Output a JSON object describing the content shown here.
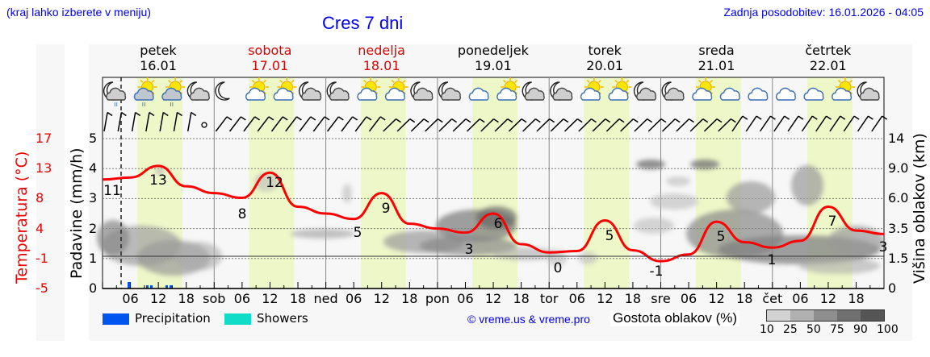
{
  "header": {
    "location_hint": "(kraj lahko izberete v meniju)",
    "title": "Cres 7 dni",
    "last_update": "Zadnja posodobitev: 16.01.2026 - 04:05"
  },
  "days": [
    {
      "name": "petek",
      "date": "16.01",
      "weekend": false
    },
    {
      "name": "sobota",
      "date": "17.01",
      "weekend": true
    },
    {
      "name": "nedelja",
      "date": "18.01",
      "weekend": true
    },
    {
      "name": "ponedeljek",
      "date": "19.01",
      "weekend": false
    },
    {
      "name": "torek",
      "date": "20.01",
      "weekend": false
    },
    {
      "name": "sreda",
      "date": "21.01",
      "weekend": false
    },
    {
      "name": "četrtek",
      "date": "22.01",
      "weekend": false
    }
  ],
  "weather_icons": [
    "moon-cloud-rain-icon",
    "sun-cloud-rain-icon",
    "sun-cloud-rain-icon",
    "moon-cloud-icon",
    "moon-icon",
    "sun-cloud-icon",
    "sun-cloud-icon",
    "moon-cloud-icon",
    "moon-cloud-icon",
    "sun-cloud-icon",
    "sun-cloud-icon",
    "moon-cloud-icon",
    "moon-cloud-icon",
    "cloud-icon",
    "sun-cloud-icon",
    "moon-cloud-icon",
    "moon-cloud-icon",
    "sun-cloud-icon",
    "sun-cloud-icon",
    "moon-cloud-icon",
    "moon-cloud-icon",
    "sun-cloud-icon",
    "cloud-icon",
    "cloud-icon",
    "cloud-icon",
    "cloud-icon",
    "sun-cloud-icon",
    "moon-cloud-icon"
  ],
  "axes": {
    "temperature_title": "Temperatura (°C)",
    "temperature_ticks": [
      "17",
      "13",
      "8",
      "4",
      "-1",
      "-5"
    ],
    "precip_title": "Padavine (mm/h)",
    "precip_ticks": [
      "5",
      "4",
      "3",
      "2",
      "1",
      "0"
    ],
    "cloud_title": "Višina oblakov (km)",
    "cloud_ticks": [
      "14",
      "9.0",
      "6.0",
      "3.5",
      "1.5",
      "0"
    ],
    "x_ticks": [
      "06",
      "12",
      "18",
      "sob",
      "06",
      "12",
      "18",
      "ned",
      "06",
      "12",
      "18",
      "pon",
      "06",
      "12",
      "18",
      "tor",
      "06",
      "12",
      "18",
      "sre",
      "06",
      "12",
      "18",
      "čet",
      "06",
      "12",
      "18"
    ]
  },
  "legend": {
    "precipitation_label": "Precipitation",
    "precipitation_color": "#0055ee",
    "showers_label": "Showers",
    "showers_color": "#11dcc8",
    "copyright": "© vreme.us & vreme.pro",
    "cloud_density_label": "Gostota oblakov (%)",
    "cloud_density_scale": [
      "10",
      "25",
      "50",
      "75",
      "90",
      "100"
    ],
    "cloud_density_colors": [
      "#d2d2d2",
      "#b0b0b0",
      "#8e8e8e",
      "#707070",
      "#555555"
    ]
  },
  "colors": {
    "temperature_line": "#ff0000",
    "daylight_band": "#eef7c8",
    "title_blue": "#0000ee",
    "weekend_red": "#dd0000"
  },
  "chart_data": {
    "type": "line",
    "title": "Cres 7 dni",
    "xlabel": "",
    "ylabel": "Temperatura (°C)",
    "ylim": [
      -5,
      17
    ],
    "x": [
      "16.01 00",
      "16.01 06",
      "16.01 12",
      "16.01 18",
      "17.01 00",
      "17.01 06",
      "17.01 12",
      "17.01 18",
      "18.01 00",
      "18.01 06",
      "18.01 12",
      "18.01 18",
      "19.01 00",
      "19.01 06",
      "19.01 12",
      "19.01 18",
      "20.01 00",
      "20.01 06",
      "20.01 12",
      "20.01 18",
      "21.01 00",
      "21.01 06",
      "21.01 12",
      "21.01 18",
      "22.01 00",
      "22.01 06",
      "22.01 12",
      "22.01 18",
      "23.01 00"
    ],
    "series": [
      {
        "name": "Temperatura (°C)",
        "values": [
          11,
          11.3,
          13,
          10,
          9,
          8.3,
          12,
          7,
          6,
          5.2,
          9,
          4.5,
          3.8,
          3.2,
          6,
          1.5,
          0.3,
          0.5,
          5,
          0.6,
          -1,
          0,
          4.8,
          1.8,
          1,
          2,
          7,
          3.5,
          3
        ]
      },
      {
        "name": "Precipitation (mm/h)",
        "values": [
          0,
          0.25,
          0.15,
          0,
          0,
          0,
          0,
          0,
          0,
          0,
          0,
          0,
          0,
          0,
          0,
          0,
          0,
          0,
          0,
          0,
          0,
          0,
          0,
          0,
          0,
          0,
          0,
          0,
          0
        ]
      }
    ],
    "annotations": {
      "temperature_labels": [
        {
          "day": "16.01",
          "time": "00",
          "value": 11
        },
        {
          "day": "16.01",
          "time": "12",
          "value": 13
        },
        {
          "day": "17.01",
          "time": "05",
          "value": 8
        },
        {
          "day": "17.01",
          "time": "12",
          "value": 12
        },
        {
          "day": "18.01",
          "time": "05",
          "value": 5
        },
        {
          "day": "18.01",
          "time": "12",
          "value": 9
        },
        {
          "day": "19.01",
          "time": "06",
          "value": 3
        },
        {
          "day": "19.01",
          "time": "13",
          "value": 6
        },
        {
          "day": "20.01",
          "time": "02",
          "value": 0
        },
        {
          "day": "20.01",
          "time": "13",
          "value": 5
        },
        {
          "day": "21.01",
          "time": "00",
          "value": -1
        },
        {
          "day": "21.01",
          "time": "13",
          "value": 5
        },
        {
          "day": "22.01",
          "time": "00",
          "value": 1
        },
        {
          "day": "22.01",
          "time": "14",
          "value": 7
        },
        {
          "day": "23.01",
          "time": "00",
          "value": 3
        }
      ]
    },
    "secondary_axes": {
      "precipitation_mm_h": [
        0,
        1,
        2,
        3,
        4,
        5
      ],
      "cloud_height_km": [
        0,
        1.5,
        3.5,
        6.0,
        9.0,
        14
      ]
    },
    "grid": true,
    "legend_position": "bottom"
  }
}
